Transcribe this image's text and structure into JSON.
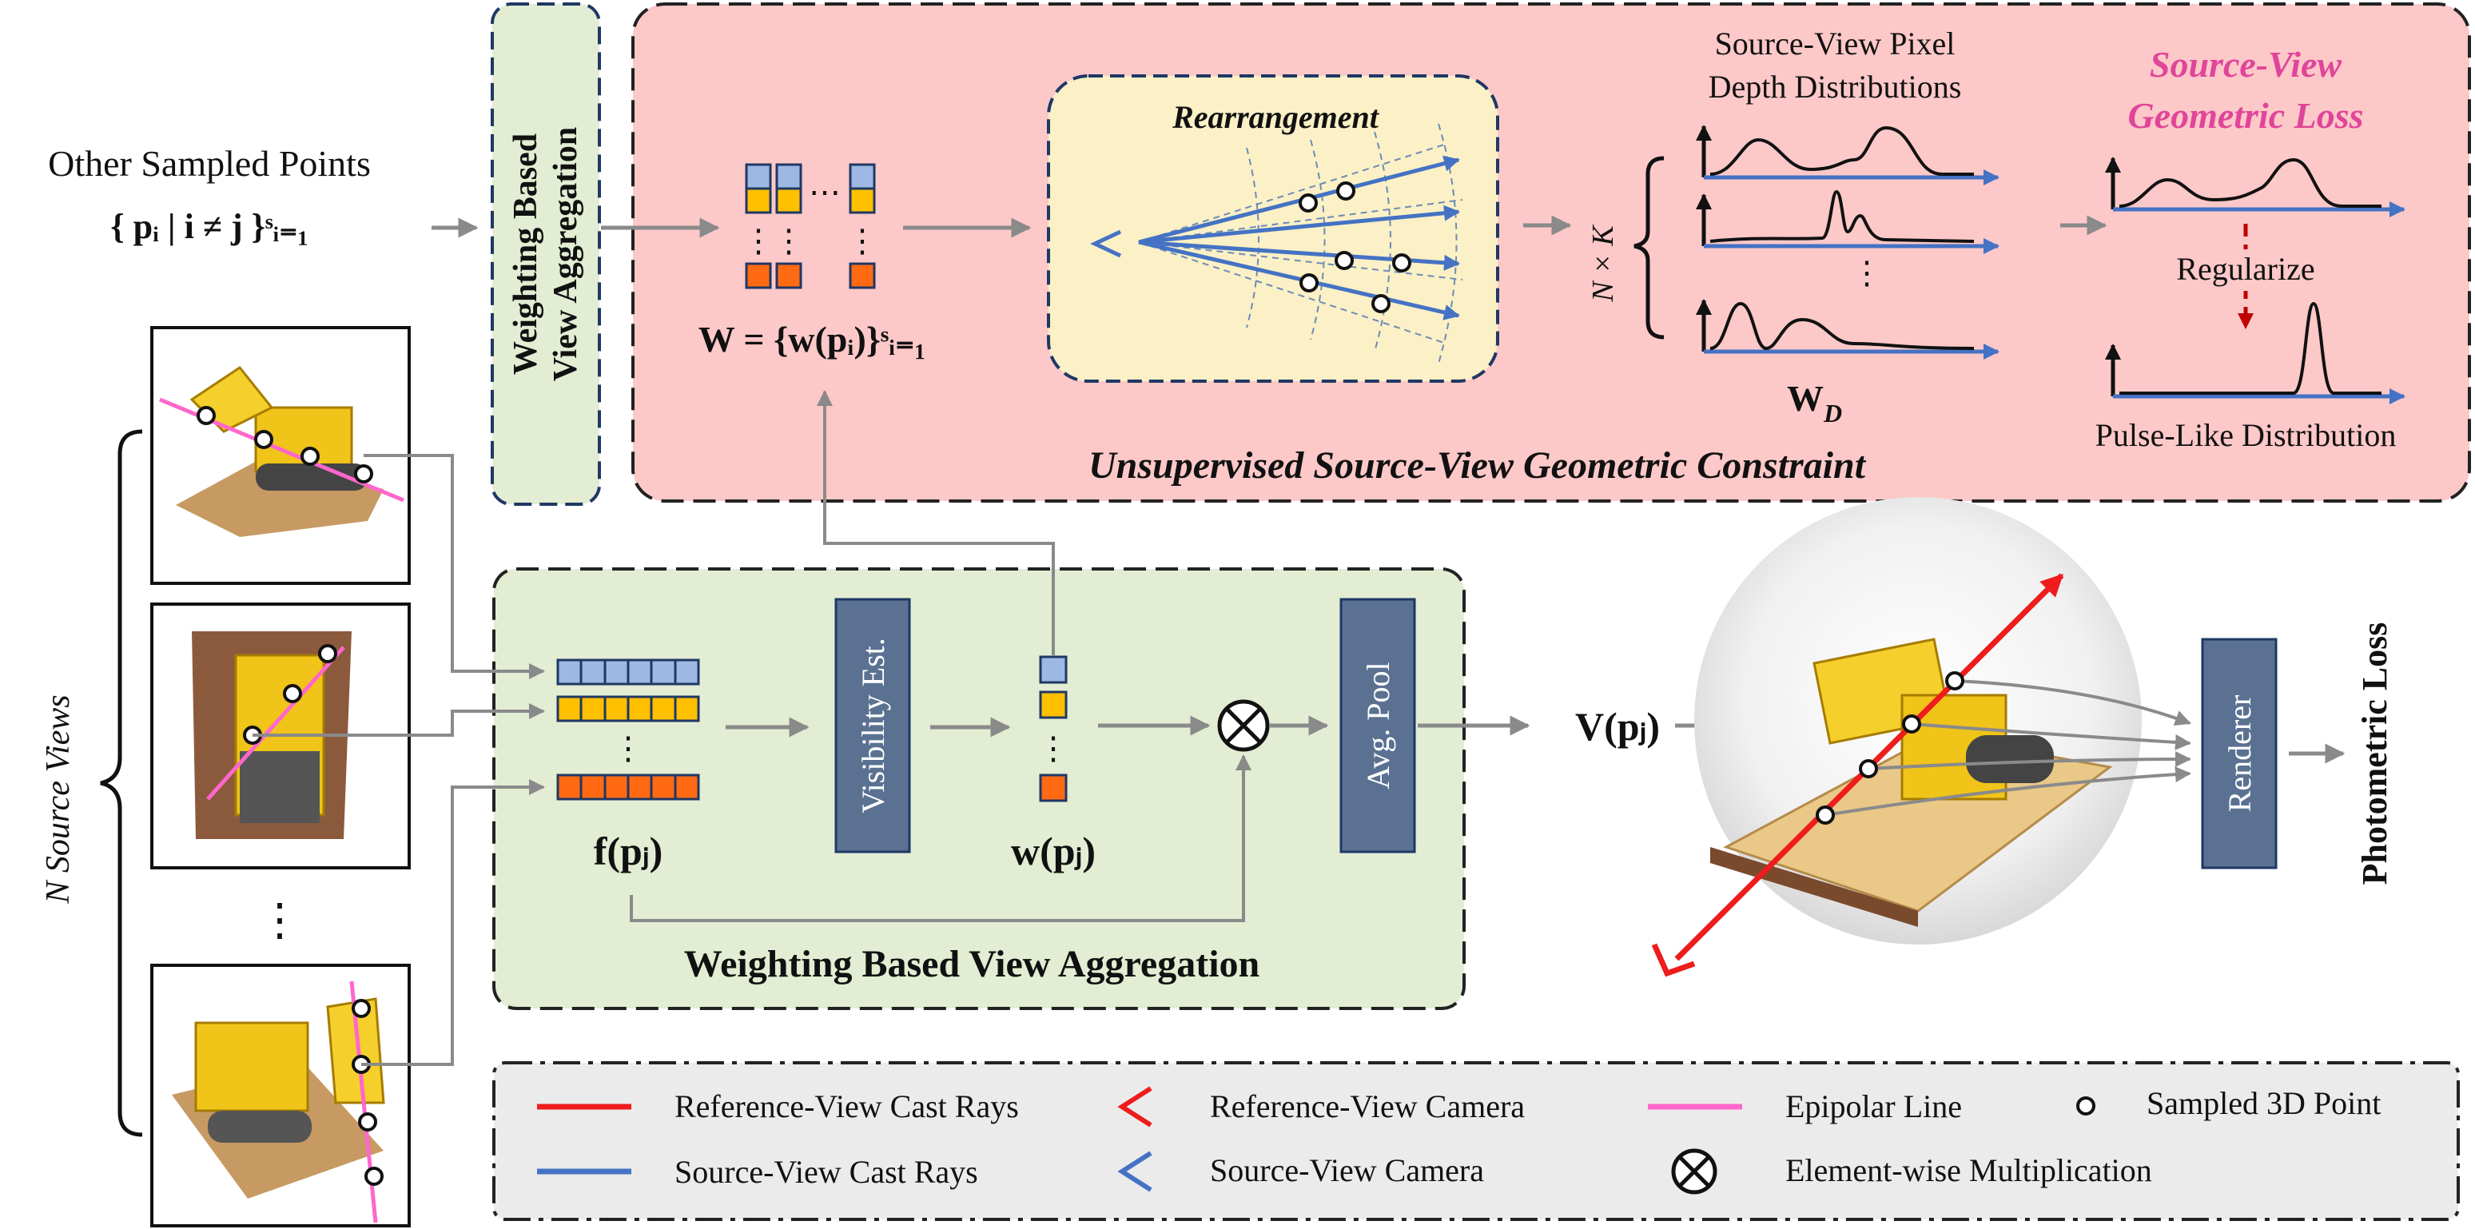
{
  "colors": {
    "red_panel_fill": "#fdc8c8",
    "green_panel_fill": "#e2edd3",
    "yellow_panel_fill": "#fbf0c6",
    "legend_fill": "#ebebeb",
    "dark_block": "#5a7191",
    "ray_red": "#ee1c1c",
    "ray_blue": "#4472c4",
    "epipolar_pink": "#ff66cc",
    "cell_blue": "#9db8e3",
    "cell_yellow": "#ffc000",
    "cell_orange": "#ff6a13",
    "accent_pink": "#e0459a",
    "arrow_gray": "#8a8a8a"
  },
  "icons": {
    "camera": "angle-bracket-camera",
    "point": "hollow-circle",
    "multiply": "circle-times",
    "source_images": "lego-bulldozer-photo"
  },
  "left": {
    "other_points_label": "Other Sampled Points",
    "other_points_set": "{ pᵢ | i ≠ j }ˢᵢ₌₁",
    "n_source_views": "N Source Views",
    "vdots": "⋮"
  },
  "top_aggregation": {
    "line1": "Weighting Based",
    "line2": "View Aggregation",
    "weights_label": "W = {w(pᵢ)}ˢᵢ₌₁",
    "hdots": "⋯",
    "vdots": "⋮"
  },
  "constraint": {
    "title": "Unsupervised Source-View Geometric Constraint",
    "rearrangement": "Rearrangement",
    "depth_dist_title_1": "Source-View Pixel",
    "depth_dist_title_2": "Depth Distributions",
    "nk": "N × K",
    "wd": "W",
    "wd_sub": "D",
    "loss_title_1": "Source-View",
    "loss_title_2": "Geometric Loss",
    "regularize": "Regularize",
    "pulse": "Pulse-Like Distribution",
    "vdots": "⋮"
  },
  "aggregation": {
    "title": "Weighting Based View Aggregation",
    "feature_label": "f(pⱼ)",
    "visibility": "Visibility Est.",
    "weight_label": "w(pⱼ)",
    "avg_pool": "Avg. Pool",
    "output": "V(pⱼ)",
    "multiply": "⊗",
    "vdots": "⋮"
  },
  "render": {
    "renderer": "Renderer",
    "photometric": "Photometric Loss"
  },
  "legend": {
    "ref_rays": "Reference-View Cast Rays",
    "ref_camera": "Reference-View Camera",
    "epipolar": "Epipolar Line",
    "sampled": "Sampled 3D Point",
    "src_rays": "Source-View Cast Rays",
    "src_camera": "Source-View Camera",
    "elementwise": "Element-wise Multiplication"
  }
}
